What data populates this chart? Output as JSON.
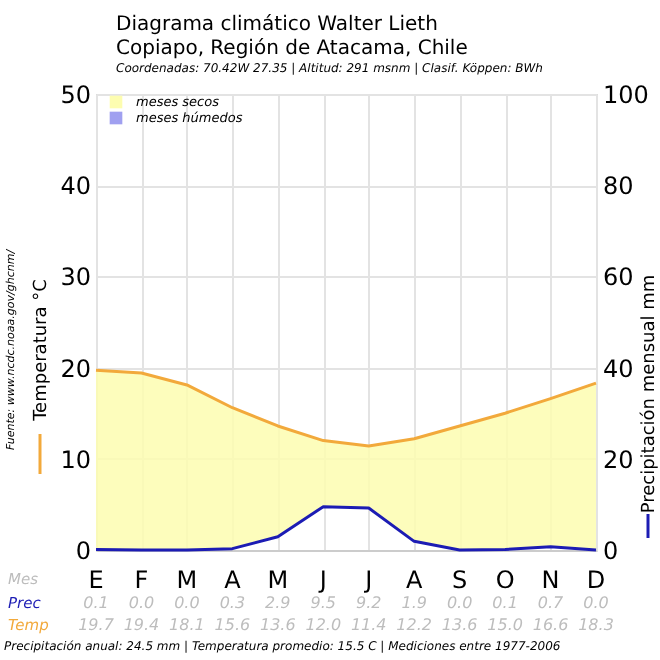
{
  "chart_data": {
    "type": "line",
    "title": "Diagrama climático Walter Lieth",
    "subtitle": "Copiapo, Región de Atacama, Chile",
    "categories": [
      "E",
      "F",
      "M",
      "A",
      "M",
      "J",
      "J",
      "A",
      "S",
      "O",
      "N",
      "D"
    ],
    "xlabel": "Mes",
    "ylabel": "Temperatura °C",
    "y2label": "Precipitación mensual mm",
    "ylim": [
      0,
      50
    ],
    "yticks": [
      0,
      10,
      20,
      30,
      40,
      50
    ],
    "y2lim": [
      0,
      100
    ],
    "y2ticks": [
      0,
      20,
      40,
      60,
      80,
      100
    ],
    "grid": true,
    "legend": "top left",
    "series": [
      {
        "name": "Prec",
        "axis": "y2",
        "color": "#1c1cb4",
        "values": [
          0.1,
          0.0,
          0.0,
          0.3,
          2.9,
          9.5,
          9.2,
          1.9,
          0.0,
          0.1,
          0.7,
          0.0
        ],
        "value_labels": [
          "0.1",
          "0.0",
          "0.0",
          "0.3",
          "2.9",
          "9.5",
          "9.2",
          "1.9",
          "0.0",
          "0.1",
          "0.7",
          "0.0"
        ]
      },
      {
        "name": "Temp",
        "color": "#f2a93b",
        "values": [
          19.7,
          19.4,
          18.1,
          15.6,
          13.6,
          12.0,
          11.4,
          12.2,
          13.6,
          15.0,
          16.6,
          18.3
        ],
        "value_labels": [
          "19.7",
          "19.4",
          "18.1",
          "15.6",
          "13.6",
          "12.0",
          "11.4",
          "12.2",
          "13.6",
          "15.0",
          "16.6",
          "18.3"
        ]
      },
      {
        "name": "meses secos",
        "type": "area",
        "color": "#fdfdb0",
        "values": [
          null,
          null,
          null,
          null,
          null,
          null,
          null,
          null,
          null,
          null,
          null,
          null
        ]
      },
      {
        "name": "meses húmedos",
        "type": "area",
        "color": "#a0a0f0",
        "values": [
          null,
          null,
          null,
          null,
          null,
          null,
          null,
          null,
          null,
          null,
          null,
          null
        ]
      }
    ],
    "annotations": [
      "Coordenadas: 70.42W 27.35 | Altitud: 291 msnm | Clasif. Köppen: BWh",
      "Precipitación anual: 24.5 mm | Temperatura promedio: 15.5 C | Mediciones entre 1977-2006",
      "Fuente: www.ncdc.noaa.gov/ghcnm/"
    ]
  }
}
